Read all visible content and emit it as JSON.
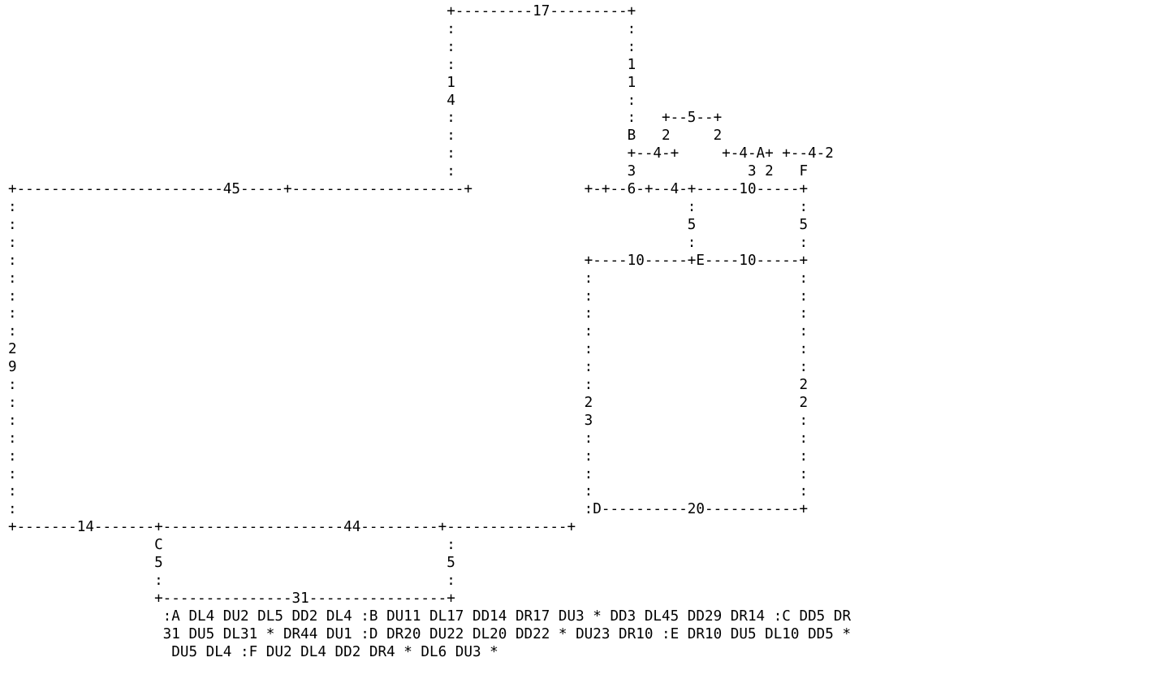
{
  "diagram": {
    "lines": [
      "                                                   +---------17---------+",
      "                                                   :                    :",
      "                                                   :                    :",
      "                                                   :                    1",
      "                                                   1                    1",
      "                                                   4                    :",
      "                                                   :                    :   +--5--+",
      "                                                   :                    B   2     2",
      "                                                   :                    +--4-+     +-4-A+ +--4-2",
      "                                                   :                    3             3 2   F",
      "+------------------------45-----+--------------------+             +-+--6-+--4-+-----10-----+",
      ":                                                                              :            :",
      ":                                                                              5            5",
      ":                                                                              :            :",
      ":                                                                  +----10-----+E----10-----+",
      ":                                                                  :                        :",
      ":                                                                  :                        :",
      ":                                                                  :                        :",
      ":                                                                  :                        :",
      "2                                                                  :                        :",
      "9                                                                  :                        :",
      ":                                                                  :                        2",
      ":                                                                  2                        2",
      ":                                                                  3                        :",
      ":                                                                  :                        :",
      ":                                                                  :                        :",
      ":                                                                  :                        :",
      ":                                                                  :                        :",
      ":                                                                  :D----------20-----------+",
      "+-------14-------+---------------------44---------+--------------+",
      "                 C                                 :",
      "                 5                                 5",
      "                 :                                 :",
      "                 +---------------31----------------+",
      "                  :A DL4 DU2 DL5 DD2 DL4 :B DU11 DL17 DD14 DR17 DU3 * DD3 DL45 DD29 DR14 :C DD5 DR",
      "                  31 DU5 DL31 * DR44 DU1 :D DR20 DU22 DL20 DD22 * DU23 DR10 :E DR10 DU5 DL10 DD5 *",
      "                   DU5 DL4 :F DU2 DL4 DD2 DR4 * DL6 DU3 *"
    ]
  }
}
